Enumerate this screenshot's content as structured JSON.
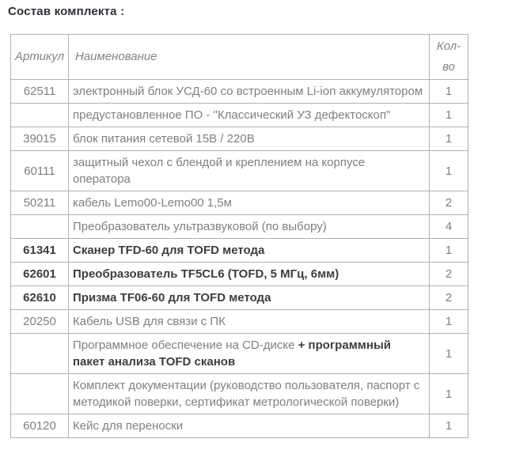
{
  "page": {
    "title": "Состав комплекта :"
  },
  "table": {
    "headers": {
      "article": "Артикул",
      "name": "Наименование",
      "qty": "Кол-во"
    },
    "rows": [
      {
        "article": "62511",
        "name": "электронный блок УСД-60 со встроенным Li-ion аккумулятором",
        "qty": "1",
        "bold": false
      },
      {
        "article": "",
        "name": "предустановленное ПО - \"Классический УЗ дефектоскоп\"",
        "qty": "1",
        "bold": false
      },
      {
        "article": "39015",
        "name": "блок питания сетевой 15В / 220В",
        "qty": "1",
        "bold": false
      },
      {
        "article": "60111",
        "name": "защитный чехол с блендой и креплением на корпусе оператора",
        "qty": "1",
        "bold": false
      },
      {
        "article": "50211",
        "name": "кабель Lemo00-Lemo00 1,5м",
        "qty": "2",
        "bold": false
      },
      {
        "article": "",
        "name": "Преобразователь ультразвуковой (по выбору)",
        "qty": "4",
        "bold": false
      },
      {
        "article": "61341",
        "name": "Сканер TFD-60 для TOFD метода",
        "qty": "1",
        "bold": true
      },
      {
        "article": "62601",
        "name": "Преобразователь TF5CL6 (TOFD, 5 МГц, 6мм)",
        "qty": "2",
        "bold": true
      },
      {
        "article": "62610",
        "name": "Призма TF06-60 для TOFD метода",
        "qty": "2",
        "bold": true
      },
      {
        "article": "20250",
        "name": "Кабель USB для связи с ПК",
        "qty": "1",
        "bold": false
      },
      {
        "article": "",
        "name": "Программное обеспечение на CD-диске ",
        "name_bold": "+ программный пакет анализа TOFD сканов",
        "qty": "1",
        "bold": false
      },
      {
        "article": "",
        "name": "Комплект документации (руководство пользователя, паспорт с методикой поверки, сертификат метрологической поверки)",
        "qty": "1",
        "bold": false
      },
      {
        "article": "60120",
        "name": "Кейс для переноски",
        "qty": "1",
        "bold": false
      }
    ]
  }
}
